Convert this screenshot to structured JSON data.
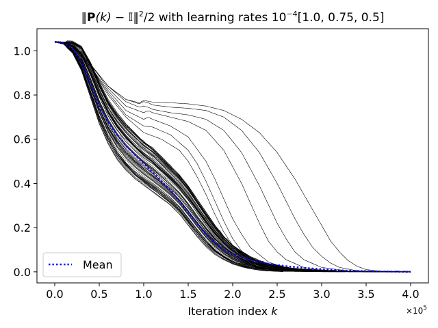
{
  "chart_data": {
    "type": "line",
    "title_parts": {
      "norm_open": "‖",
      "P": "P",
      "k_arg": "(k)",
      "minus": " − ",
      "identity": "𝕀",
      "norm_close": "‖",
      "sq": "2",
      "rest_before_exp": "/2 with learning rates 10",
      "exp": "−4",
      "rest_after_exp": "[1.0, 0.75, 0.5]"
    },
    "xlabel": {
      "text": "Iteration index ",
      "var": "k"
    },
    "x_offset_text": {
      "base": "×10",
      "exp": "5"
    },
    "xlim": [
      -0.2,
      4.2
    ],
    "ylim": [
      -0.05,
      1.1
    ],
    "xticks": [
      0.0,
      0.5,
      1.0,
      1.5,
      2.0,
      2.5,
      3.0,
      3.5,
      4.0
    ],
    "xtick_labels": [
      "0.0",
      "0.5",
      "1.0",
      "1.5",
      "2.0",
      "2.5",
      "3.0",
      "3.5",
      "4.0"
    ],
    "yticks": [
      0.0,
      0.2,
      0.4,
      0.6,
      0.8,
      1.0
    ],
    "ytick_labels": [
      "0.0",
      "0.2",
      "0.4",
      "0.6",
      "0.8",
      "1.0"
    ],
    "grid": false,
    "legend": {
      "position": "lower-left",
      "entries": [
        {
          "label": "Mean",
          "style": "dotted",
          "color": "#0000ff"
        }
      ]
    },
    "series_color": "#000000",
    "mean_color": "#0000ff",
    "mean": {
      "name": "Mean",
      "x": [
        0.0,
        0.1,
        0.2,
        0.3,
        0.4,
        0.5,
        0.6,
        0.7,
        0.8,
        0.9,
        1.0,
        1.1,
        1.2,
        1.3,
        1.4,
        1.5,
        1.6,
        1.7,
        1.8,
        1.9,
        2.0,
        2.1,
        2.2,
        2.3,
        2.4,
        2.5,
        2.6,
        2.7,
        2.8,
        2.9,
        3.0,
        3.2,
        3.4,
        3.6,
        3.8,
        4.0
      ],
      "y": [
        1.04,
        1.035,
        1.01,
        0.95,
        0.85,
        0.75,
        0.68,
        0.62,
        0.57,
        0.53,
        0.49,
        0.45,
        0.41,
        0.37,
        0.32,
        0.27,
        0.22,
        0.17,
        0.13,
        0.1,
        0.08,
        0.065,
        0.053,
        0.044,
        0.037,
        0.031,
        0.026,
        0.022,
        0.018,
        0.015,
        0.012,
        0.007,
        0.004,
        0.002,
        0.001,
        0.0
      ]
    },
    "band_series": {
      "description": "approximately 80 individual runs clustered around the mean",
      "x": [
        0.0,
        0.1,
        0.2,
        0.3,
        0.4,
        0.5,
        0.6,
        0.7,
        0.8,
        0.9,
        1.0,
        1.1,
        1.2,
        1.3,
        1.4,
        1.5,
        1.6,
        1.7,
        1.8,
        1.9,
        2.0,
        2.1,
        2.2,
        2.3,
        2.4,
        2.6,
        2.8,
        3.0,
        3.3,
        3.6,
        4.0
      ],
      "lower": [
        1.04,
        1.03,
        0.99,
        0.91,
        0.79,
        0.67,
        0.58,
        0.51,
        0.46,
        0.42,
        0.39,
        0.36,
        0.33,
        0.3,
        0.26,
        0.21,
        0.16,
        0.115,
        0.08,
        0.055,
        0.035,
        0.022,
        0.013,
        0.008,
        0.005,
        0.002,
        0.001,
        0.0,
        0.0,
        0.0,
        0.0
      ],
      "upper": [
        1.04,
        1.04,
        1.04,
        1.02,
        0.95,
        0.86,
        0.78,
        0.72,
        0.67,
        0.63,
        0.59,
        0.56,
        0.52,
        0.48,
        0.44,
        0.39,
        0.33,
        0.27,
        0.21,
        0.16,
        0.12,
        0.09,
        0.065,
        0.048,
        0.035,
        0.02,
        0.012,
        0.007,
        0.003,
        0.001,
        0.0
      ],
      "count": 80
    },
    "outlier_series": [
      {
        "name": "run-outlier-1",
        "x": [
          0.0,
          0.2,
          0.4,
          0.6,
          0.8,
          0.95,
          1.0,
          1.05,
          1.1,
          1.3,
          1.5,
          1.7,
          1.9,
          2.1,
          2.3,
          2.5,
          2.7,
          2.9,
          3.0,
          3.1,
          3.2,
          3.3,
          3.4,
          3.5,
          3.7,
          4.0
        ],
        "y": [
          1.04,
          1.02,
          0.94,
          0.84,
          0.78,
          0.765,
          0.775,
          0.772,
          0.768,
          0.765,
          0.76,
          0.75,
          0.73,
          0.69,
          0.63,
          0.54,
          0.42,
          0.28,
          0.21,
          0.14,
          0.09,
          0.05,
          0.025,
          0.01,
          0.002,
          0.0
        ]
      },
      {
        "name": "run-outlier-2",
        "x": [
          0.0,
          0.2,
          0.4,
          0.6,
          0.8,
          0.95,
          1.0,
          1.05,
          1.1,
          1.3,
          1.5,
          1.7,
          1.9,
          2.1,
          2.3,
          2.5,
          2.7,
          2.8,
          2.9,
          3.0,
          3.1,
          3.2,
          3.4,
          3.7,
          4.0
        ],
        "y": [
          1.04,
          1.02,
          0.94,
          0.84,
          0.78,
          0.76,
          0.77,
          0.765,
          0.755,
          0.745,
          0.74,
          0.73,
          0.7,
          0.64,
          0.54,
          0.4,
          0.24,
          0.17,
          0.11,
          0.07,
          0.04,
          0.02,
          0.005,
          0.001,
          0.0
        ]
      },
      {
        "name": "run-outlier-3",
        "x": [
          0.0,
          0.2,
          0.4,
          0.6,
          0.8,
          0.95,
          1.0,
          1.05,
          1.1,
          1.3,
          1.5,
          1.7,
          1.9,
          2.1,
          2.3,
          2.5,
          2.6,
          2.7,
          2.8,
          3.0,
          3.3,
          3.7,
          4.0
        ],
        "y": [
          1.04,
          1.02,
          0.94,
          0.84,
          0.77,
          0.745,
          0.75,
          0.745,
          0.735,
          0.72,
          0.71,
          0.69,
          0.64,
          0.54,
          0.39,
          0.22,
          0.15,
          0.09,
          0.055,
          0.02,
          0.004,
          0.001,
          0.0
        ]
      },
      {
        "name": "run-outlier-4",
        "x": [
          0.0,
          0.2,
          0.4,
          0.6,
          0.8,
          1.0,
          1.05,
          1.1,
          1.3,
          1.5,
          1.7,
          1.9,
          2.1,
          2.2,
          2.3,
          2.4,
          2.5,
          2.6,
          2.8,
          3.0,
          3.4,
          4.0
        ],
        "y": [
          1.04,
          1.02,
          0.94,
          0.83,
          0.75,
          0.72,
          0.73,
          0.72,
          0.7,
          0.68,
          0.64,
          0.55,
          0.4,
          0.31,
          0.22,
          0.14,
          0.09,
          0.055,
          0.02,
          0.007,
          0.001,
          0.0
        ]
      },
      {
        "name": "run-outlier-5",
        "x": [
          0.0,
          0.2,
          0.4,
          0.6,
          0.8,
          1.0,
          1.05,
          1.1,
          1.3,
          1.5,
          1.7,
          1.8,
          1.9,
          2.0,
          2.1,
          2.2,
          2.4,
          2.6,
          3.0,
          3.5,
          4.0
        ],
        "y": [
          1.04,
          1.02,
          0.93,
          0.82,
          0.73,
          0.69,
          0.7,
          0.69,
          0.66,
          0.61,
          0.5,
          0.42,
          0.33,
          0.24,
          0.17,
          0.11,
          0.045,
          0.016,
          0.002,
          0.0,
          0.0
        ]
      },
      {
        "name": "run-outlier-6",
        "x": [
          0.0,
          0.2,
          0.4,
          0.6,
          0.8,
          1.0,
          1.1,
          1.3,
          1.5,
          1.6,
          1.7,
          1.8,
          1.9,
          2.0,
          2.1,
          2.2,
          2.4,
          2.7,
          3.2,
          4.0
        ],
        "y": [
          1.04,
          1.02,
          0.93,
          0.81,
          0.71,
          0.66,
          0.655,
          0.62,
          0.55,
          0.49,
          0.41,
          0.32,
          0.23,
          0.15,
          0.095,
          0.06,
          0.02,
          0.004,
          0.0,
          0.0
        ]
      },
      {
        "name": "run-outlier-7",
        "x": [
          0.0,
          0.2,
          0.4,
          0.6,
          0.8,
          1.0,
          1.2,
          1.4,
          1.5,
          1.6,
          1.7,
          1.8,
          1.9,
          2.0,
          2.2,
          2.5,
          3.0,
          4.0
        ],
        "y": [
          1.04,
          1.02,
          0.93,
          0.8,
          0.7,
          0.63,
          0.6,
          0.55,
          0.5,
          0.43,
          0.35,
          0.26,
          0.18,
          0.12,
          0.05,
          0.012,
          0.001,
          0.0
        ]
      }
    ]
  }
}
